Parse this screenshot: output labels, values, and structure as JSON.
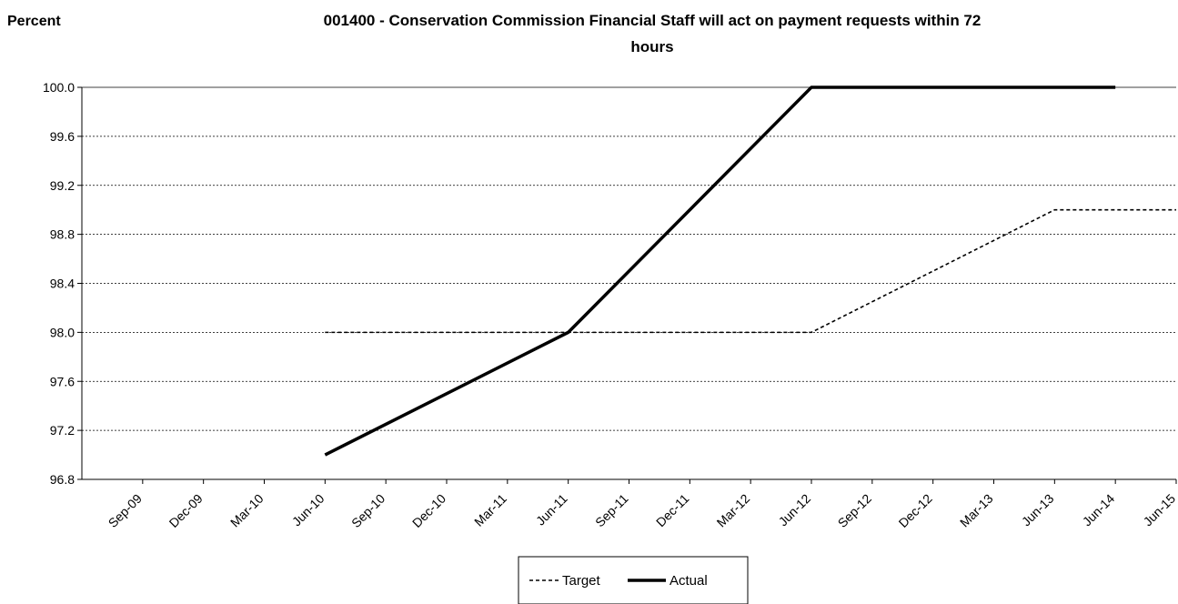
{
  "chart_data": {
    "type": "line",
    "title_line1": "001400 - Conservation Commission Financial Staff will act on payment requests within 72",
    "title_line2": "hours",
    "ylabel": "Percent",
    "xlabel": "",
    "categories": [
      "Sep-09",
      "Dec-09",
      "Mar-10",
      "Jun-10",
      "Sep-10",
      "Dec-10",
      "Mar-11",
      "Jun-11",
      "Sep-11",
      "Dec-11",
      "Mar-12",
      "Jun-12",
      "Sep-12",
      "Dec-12",
      "Mar-13",
      "Jun-13",
      "Jun-14",
      "Jun-15"
    ],
    "ylim": [
      96.8,
      100.0
    ],
    "yticks": [
      "96.8",
      "97.2",
      "97.6",
      "98.0",
      "98.4",
      "98.8",
      "99.2",
      "99.6",
      "100.0"
    ],
    "grid": true,
    "legend_position": "bottom",
    "series": [
      {
        "name": "Target",
        "style": "dashed",
        "color": "#000000",
        "points": [
          {
            "x": "Jun-10",
            "y": 98.0
          },
          {
            "x": "Jun-11",
            "y": 98.0
          },
          {
            "x": "Jun-12",
            "y": 98.0
          },
          {
            "x": "Jun-13",
            "y": 99.0
          },
          {
            "x": "Jun-15",
            "y": 99.0
          }
        ]
      },
      {
        "name": "Actual",
        "style": "solid",
        "color": "#000000",
        "points": [
          {
            "x": "Jun-10",
            "y": 97.0
          },
          {
            "x": "Jun-11",
            "y": 98.0
          },
          {
            "x": "Jun-12",
            "y": 100.0
          },
          {
            "x": "Jun-13",
            "y": 100.0
          },
          {
            "x": "Jun-14",
            "y": 100.0
          }
        ]
      }
    ]
  }
}
